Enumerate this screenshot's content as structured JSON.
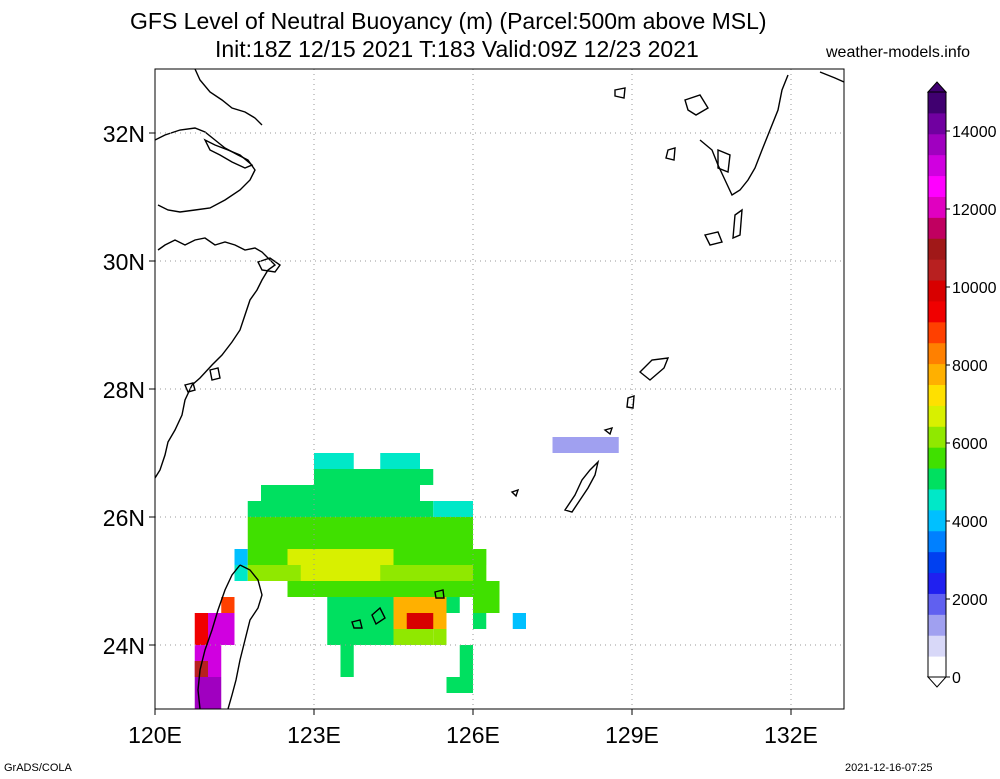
{
  "title": {
    "line1": "GFS Level of Neutral Buoyancy (m) (Parcel:500m above MSL)",
    "line2": "Init:18Z 12/15 2021 T:183 Valid:09Z 12/23 2021"
  },
  "source": "weather-models.info",
  "footer": {
    "left": "GrADS/COLA",
    "right": "2021-12-16-07:25"
  },
  "map": {
    "lon_range": [
      120,
      132.8
    ],
    "lat_range": [
      23.0,
      33.0
    ],
    "lon_ticks": [
      {
        "value": 120,
        "label": "120E"
      },
      {
        "value": 123,
        "label": "123E"
      },
      {
        "value": 126,
        "label": "126E"
      },
      {
        "value": 129,
        "label": "129E"
      },
      {
        "value": 132,
        "label": "132E"
      }
    ],
    "lat_ticks": [
      {
        "value": 24,
        "label": "24N"
      },
      {
        "value": 26,
        "label": "26N"
      },
      {
        "value": 28,
        "label": "28N"
      },
      {
        "value": 30,
        "label": "30N"
      },
      {
        "value": 32,
        "label": "32N"
      }
    ],
    "grid": "dotted",
    "cells": [
      {
        "lon": 123.0,
        "lat": 26.75,
        "w": 0.75,
        "h": 0.25,
        "v": 4800
      },
      {
        "lon": 123.0,
        "lat": 26.5,
        "w": 1.25,
        "h": 0.25,
        "v": 5000
      },
      {
        "lon": 124.25,
        "lat": 26.75,
        "w": 0.75,
        "h": 0.25,
        "v": 4800
      },
      {
        "lon": 124.0,
        "lat": 26.5,
        "w": 1.25,
        "h": 0.25,
        "v": 5000
      },
      {
        "lon": 122.0,
        "lat": 26.25,
        "w": 3.0,
        "h": 0.25,
        "v": 5200
      },
      {
        "lon": 121.75,
        "lat": 26.0,
        "w": 3.5,
        "h": 0.25,
        "v": 5200
      },
      {
        "lon": 125.25,
        "lat": 26.0,
        "w": 0.75,
        "h": 0.25,
        "v": 4600
      },
      {
        "lon": 121.75,
        "lat": 25.75,
        "w": 4.25,
        "h": 0.25,
        "v": 5400
      },
      {
        "lon": 121.75,
        "lat": 25.5,
        "w": 4.25,
        "h": 0.25,
        "v": 5600
      },
      {
        "lon": 121.5,
        "lat": 25.25,
        "w": 0.25,
        "h": 0.25,
        "v": 4200
      },
      {
        "lon": 121.75,
        "lat": 25.25,
        "w": 4.5,
        "h": 0.25,
        "v": 5800
      },
      {
        "lon": 121.5,
        "lat": 25.0,
        "w": 0.25,
        "h": 0.25,
        "v": 4400
      },
      {
        "lon": 121.75,
        "lat": 25.0,
        "w": 4.5,
        "h": 0.25,
        "v": 5900
      },
      {
        "lon": 122.5,
        "lat": 25.25,
        "w": 2.0,
        "h": 0.25,
        "v": 6500
      },
      {
        "lon": 122.75,
        "lat": 25.0,
        "w": 1.5,
        "h": 0.25,
        "v": 6700
      },
      {
        "lon": 122.5,
        "lat": 24.75,
        "w": 3.75,
        "h": 0.25,
        "v": 5500
      },
      {
        "lon": 123.25,
        "lat": 24.5,
        "w": 2.5,
        "h": 0.25,
        "v": 5200
      },
      {
        "lon": 123.25,
        "lat": 24.25,
        "w": 1.25,
        "h": 0.25,
        "v": 5000
      },
      {
        "lon": 123.25,
        "lat": 24.0,
        "w": 1.25,
        "h": 0.25,
        "v": 4900
      },
      {
        "lon": 124.5,
        "lat": 24.25,
        "w": 1.0,
        "h": 0.5,
        "v": 7500
      },
      {
        "lon": 124.75,
        "lat": 24.25,
        "w": 0.5,
        "h": 0.25,
        "v": 10000
      },
      {
        "lon": 125.25,
        "lat": 24.0,
        "w": 0.25,
        "h": 0.25,
        "v": 6000
      },
      {
        "lon": 124.5,
        "lat": 24.0,
        "w": 0.75,
        "h": 0.25,
        "v": 6200
      },
      {
        "lon": 126.0,
        "lat": 25.0,
        "w": 0.25,
        "h": 0.5,
        "v": 5600
      },
      {
        "lon": 126.0,
        "lat": 24.5,
        "w": 0.5,
        "h": 0.5,
        "v": 5400
      },
      {
        "lon": 126.0,
        "lat": 24.25,
        "w": 0.25,
        "h": 0.25,
        "v": 5200
      },
      {
        "lon": 126.75,
        "lat": 24.25,
        "w": 0.25,
        "h": 0.25,
        "v": 3800
      },
      {
        "lon": 123.5,
        "lat": 23.5,
        "w": 0.25,
        "h": 0.5,
        "v": 5000
      },
      {
        "lon": 125.75,
        "lat": 23.5,
        "w": 0.25,
        "h": 0.5,
        "v": 5200
      },
      {
        "lon": 125.5,
        "lat": 23.25,
        "w": 0.5,
        "h": 0.25,
        "v": 5000
      },
      {
        "lon": 121.25,
        "lat": 24.5,
        "w": 0.25,
        "h": 0.25,
        "v": 9000
      },
      {
        "lon": 121.0,
        "lat": 24.0,
        "w": 0.5,
        "h": 0.5,
        "v": 13000
      },
      {
        "lon": 120.75,
        "lat": 24.0,
        "w": 0.25,
        "h": 0.5,
        "v": 9500
      },
      {
        "lon": 120.75,
        "lat": 23.5,
        "w": 0.5,
        "h": 0.5,
        "v": 13200
      },
      {
        "lon": 120.75,
        "lat": 23.5,
        "w": 0.25,
        "h": 0.25,
        "v": 10500
      },
      {
        "lon": 120.75,
        "lat": 23.0,
        "w": 0.5,
        "h": 0.5,
        "v": 13400
      },
      {
        "lon": 127.5,
        "lat": 27.0,
        "w": 1.25,
        "h": 0.25,
        "v": 1600
      }
    ]
  },
  "colorbar": {
    "min": 0,
    "max": 15000,
    "ticks": [
      {
        "value": 0,
        "label": "0"
      },
      {
        "value": 2000,
        "label": "2000"
      },
      {
        "value": 4000,
        "label": "4000"
      },
      {
        "value": 6000,
        "label": "6000"
      },
      {
        "value": 8000,
        "label": "8000"
      },
      {
        "value": 10000,
        "label": "10000"
      },
      {
        "value": 12000,
        "label": "12000"
      },
      {
        "value": 14000,
        "label": "14000"
      }
    ],
    "colors": [
      "#ffffff",
      "#d8d8f8",
      "#a0a0f0",
      "#6060f0",
      "#2020f0",
      "#0040f0",
      "#0080ff",
      "#00c0ff",
      "#00e8c8",
      "#00e060",
      "#40e000",
      "#90e800",
      "#d8f000",
      "#ffe000",
      "#ffb000",
      "#ff8000",
      "#ff4000",
      "#f00000",
      "#d80000",
      "#b82020",
      "#a01818",
      "#c00060",
      "#e000c0",
      "#ff00ff",
      "#d000e0",
      "#a000c0",
      "#7000a0",
      "#400070"
    ]
  }
}
